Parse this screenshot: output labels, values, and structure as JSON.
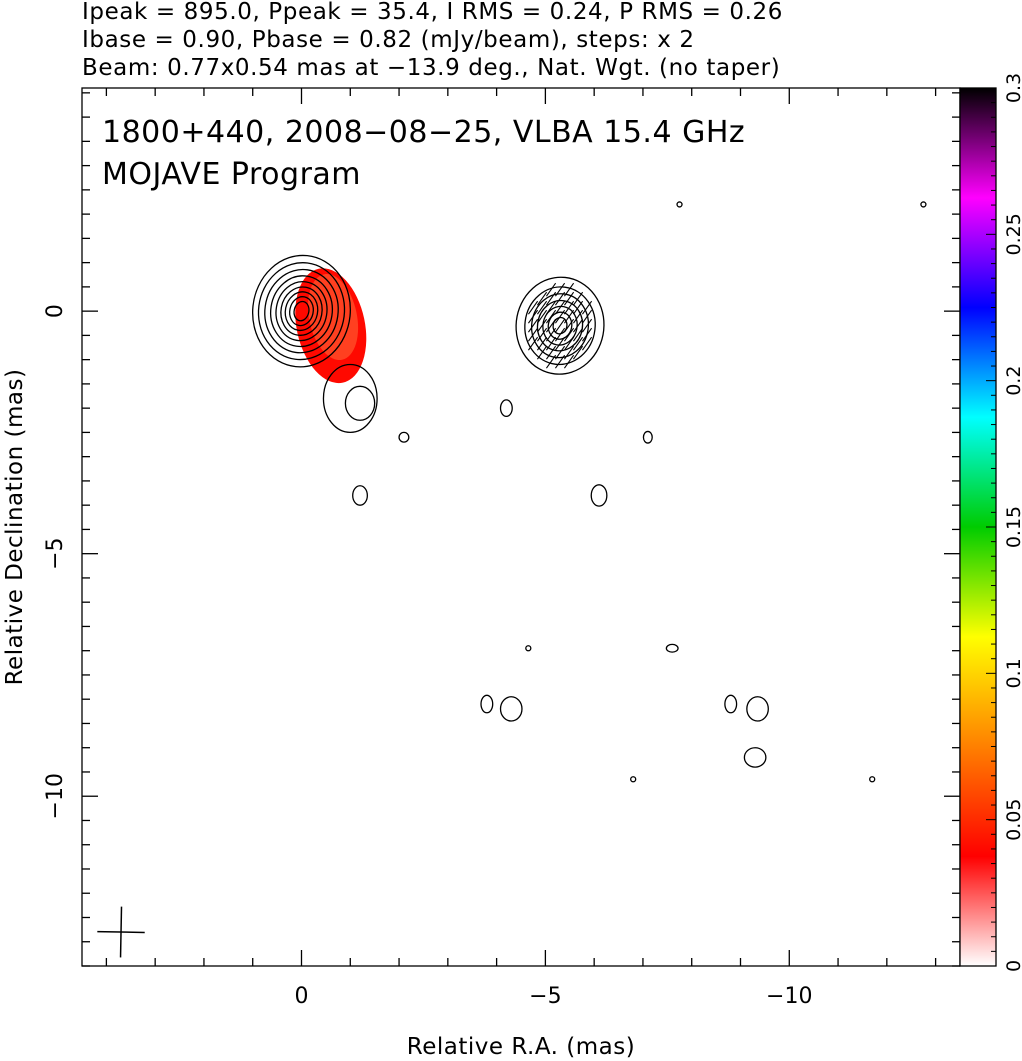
{
  "header": {
    "line1": "Ipeak = 895.0, Ppeak = 35.4, I RMS = 0.24, P RMS = 0.26",
    "line2": "Ibase = 0.90, Pbase = 0.82 (mJy/beam), steps: x 2",
    "line3": "Beam: 0.77x0.54 mas at −13.9 deg., Nat. Wgt. (no taper)"
  },
  "annotations": {
    "source_line": "1800+440, 2008−08−25, VLBA 15.4 GHz",
    "program_line": "MOJAVE Program"
  },
  "chart_data": {
    "type": "contour",
    "xlabel": "Relative R.A. (mas)",
    "ylabel": "Relative Declination (mas)",
    "xlim": [
      4.5,
      -13.5
    ],
    "ylim": [
      -13.5,
      4.6
    ],
    "x_ticks": [
      {
        "value": 0,
        "label": "0"
      },
      {
        "value": -5,
        "label": "−5"
      },
      {
        "value": -10,
        "label": "−10"
      }
    ],
    "y_ticks": [
      {
        "value": 0,
        "label": "0"
      },
      {
        "value": -5,
        "label": "−5"
      },
      {
        "value": -10,
        "label": "−10"
      }
    ],
    "x_minor_step": 1,
    "y_minor_step": 0.5,
    "colorbar": {
      "min": 0,
      "max": 0.3,
      "ticks": [
        {
          "value": 0,
          "label": "0"
        },
        {
          "value": 0.05,
          "label": "0.05"
        },
        {
          "value": 0.1,
          "label": "0.1"
        },
        {
          "value": 0.15,
          "label": "0.15"
        },
        {
          "value": 0.2,
          "label": "0.2"
        },
        {
          "value": 0.25,
          "label": "0.25"
        },
        {
          "value": 0.3,
          "label": "0.3"
        }
      ],
      "colors": [
        "#ffffff",
        "#ff0000",
        "#ff8000",
        "#ffff00",
        "#00cc00",
        "#00ffff",
        "#0000ff",
        "#ff00ff",
        "#000000"
      ]
    },
    "panels": [
      {
        "name": "stokes-I",
        "center": [
          0.0,
          0.0
        ],
        "contours": [
          [
            1.0,
            1.15,
            -15
          ],
          [
            0.88,
            1.0,
            -18
          ],
          [
            0.75,
            0.86,
            -20
          ],
          [
            0.63,
            0.73,
            -22
          ],
          [
            0.52,
            0.61,
            -24
          ],
          [
            0.42,
            0.5,
            -26
          ],
          [
            0.33,
            0.4,
            -28
          ],
          [
            0.24,
            0.3,
            -30
          ],
          [
            0.15,
            0.2,
            -32
          ]
        ],
        "color_region": {
          "x": -0.6,
          "y": -0.3,
          "rx": 0.7,
          "ry": 1.2,
          "value": 0.04
        }
      },
      {
        "name": "polarization",
        "center": [
          -5.3,
          -0.3
        ],
        "contours": [
          [
            0.9,
            1.0,
            -15
          ],
          [
            0.72,
            0.8,
            -18
          ],
          [
            0.58,
            0.66,
            -22
          ],
          [
            0.46,
            0.52,
            -25
          ],
          [
            0.35,
            0.4,
            -28
          ],
          [
            0.24,
            0.28,
            -30
          ],
          [
            0.14,
            0.17,
            -32
          ]
        ],
        "evpa_deg": 125
      }
    ],
    "islands": [
      {
        "x": -1.0,
        "y": -1.8,
        "rx": 0.55,
        "ry": 0.7
      },
      {
        "x": -1.2,
        "y": -1.9,
        "rx": 0.3,
        "ry": 0.35
      },
      {
        "x": -2.1,
        "y": -2.6,
        "rx": 0.1,
        "ry": 0.1
      },
      {
        "x": -1.2,
        "y": -3.8,
        "rx": 0.15,
        "ry": 0.2
      },
      {
        "x": -4.2,
        "y": -2.0,
        "rx": 0.12,
        "ry": 0.17
      },
      {
        "x": -7.1,
        "y": -2.6,
        "rx": 0.09,
        "ry": 0.12
      },
      {
        "x": -6.1,
        "y": -3.8,
        "rx": 0.16,
        "ry": 0.22
      },
      {
        "x": -4.65,
        "y": -6.95,
        "rx": 0.05,
        "ry": 0.05
      },
      {
        "x": -7.6,
        "y": -6.95,
        "rx": 0.12,
        "ry": 0.08
      },
      {
        "x": -3.8,
        "y": -8.1,
        "rx": 0.12,
        "ry": 0.18
      },
      {
        "x": -4.3,
        "y": -8.2,
        "rx": 0.22,
        "ry": 0.25
      },
      {
        "x": -8.8,
        "y": -8.1,
        "rx": 0.12,
        "ry": 0.18
      },
      {
        "x": -9.35,
        "y": -8.2,
        "rx": 0.22,
        "ry": 0.25
      },
      {
        "x": -9.3,
        "y": -9.2,
        "rx": 0.22,
        "ry": 0.2
      },
      {
        "x": -6.8,
        "y": -9.65,
        "rx": 0.05,
        "ry": 0.05
      },
      {
        "x": -11.7,
        "y": -9.65,
        "rx": 0.05,
        "ry": 0.05
      },
      {
        "x": -7.75,
        "y": 2.2,
        "rx": 0.03,
        "ry": 0.03
      },
      {
        "x": -12.75,
        "y": 2.2,
        "rx": 0.03,
        "ry": 0.03
      }
    ],
    "beam": {
      "major": 0.77,
      "minor": 0.54,
      "pa_deg": -13.9
    }
  }
}
